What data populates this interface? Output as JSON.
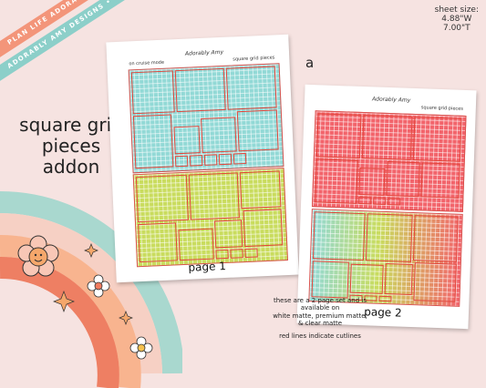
{
  "ribbons": {
    "top": "PLAN LIFE ADORABLY • PLAN LIFE ADORABLY •",
    "bottom": "ADORABLY AMY DESIGNS • ADORABLY AMY DESIGNS •"
  },
  "sheet_info": {
    "line1": "sheet size:",
    "line2": "4.88\"W",
    "line3": "7.00\"T"
  },
  "title": {
    "line1": "square grid",
    "line2": "pieces",
    "line3": "addon"
  },
  "variant_letter": "a",
  "page1": {
    "header_left": "on cruise mode",
    "header_mid": "Adorably Amy",
    "header_right": "square grid pieces",
    "label": "page 1"
  },
  "page2": {
    "header_left": "",
    "header_mid": "Adorably Amy",
    "header_right": "square grid pieces",
    "label": "page 2"
  },
  "note": {
    "line1": "these are a 2 page set and is available on",
    "line2": "white matte, premium matte, & clear matte",
    "line3": "red lines indicate cutlines"
  },
  "colors": {
    "background": "#f6e3e1",
    "teal": "#92d9d6",
    "lime": "#c9dc5e",
    "coral": "#f2646b",
    "cutline": "#e2463b",
    "ribbon_orange": "#f3957a",
    "ribbon_teal": "#8ccfc9"
  },
  "icons": [
    "smiley-flower-icon",
    "daisy-icon",
    "sparkle-icon"
  ]
}
